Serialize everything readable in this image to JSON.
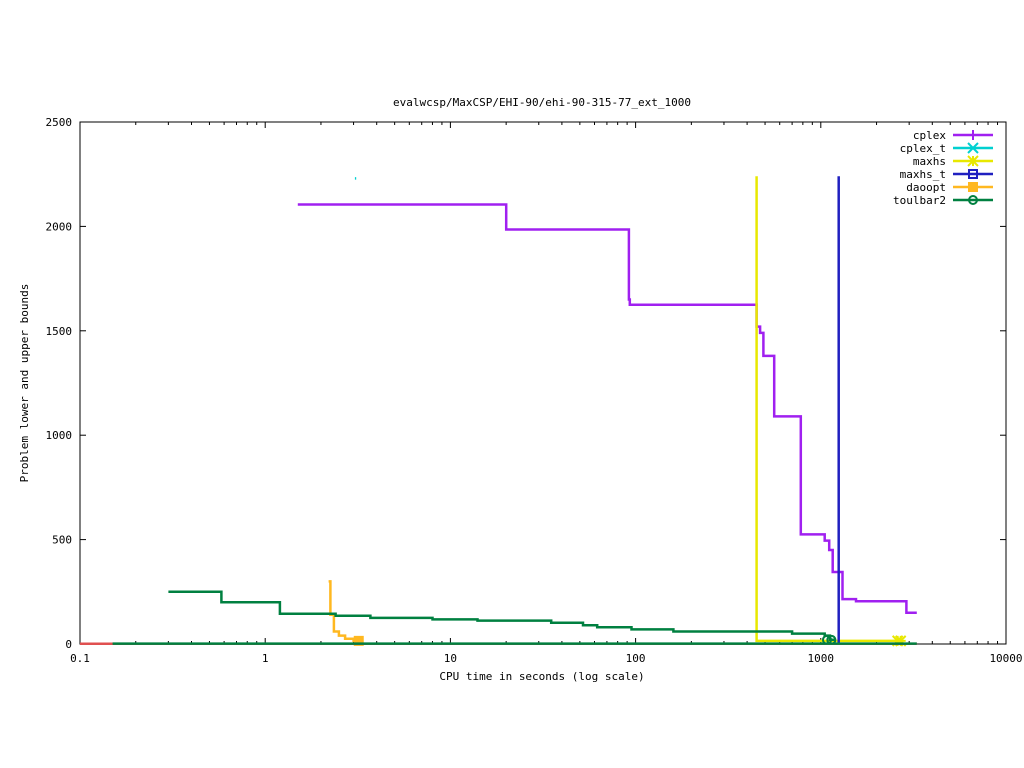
{
  "chart_data": {
    "type": "line",
    "title": "evalwcsp/MaxCSP/EHI-90/ehi-90-315-77_ext_1000",
    "xlabel": "CPU time in seconds (log scale)",
    "ylabel": "Problem lower and upper bounds",
    "xscale": "log",
    "xlim": [
      0.1,
      10000
    ],
    "ylim": [
      0,
      2500
    ],
    "xticks": [
      {
        "v": 0.1,
        "label": "0.1"
      },
      {
        "v": 1,
        "label": "1"
      },
      {
        "v": 10,
        "label": "10"
      },
      {
        "v": 100,
        "label": "100"
      },
      {
        "v": 1000,
        "label": "1000"
      },
      {
        "v": 10000,
        "label": "10000"
      }
    ],
    "yticks": [
      {
        "v": 0,
        "label": "0"
      },
      {
        "v": 500,
        "label": "500"
      },
      {
        "v": 1000,
        "label": "1000"
      },
      {
        "v": 1500,
        "label": "1500"
      },
      {
        "v": 2000,
        "label": "2000"
      },
      {
        "v": 2500,
        "label": "2500"
      }
    ],
    "grid": false,
    "legend_position": "top-right",
    "series": [
      {
        "name": "cplex",
        "color": "#a020f0",
        "marker": "plus",
        "points": [
          [
            1.5,
            2105
          ],
          [
            20,
            2105
          ],
          [
            20,
            1985
          ],
          [
            92,
            1985
          ],
          [
            92,
            1650
          ],
          [
            93,
            1650
          ],
          [
            93,
            1625
          ],
          [
            450,
            1625
          ],
          [
            450,
            1520
          ],
          [
            470,
            1520
          ],
          [
            470,
            1490
          ],
          [
            490,
            1490
          ],
          [
            490,
            1380
          ],
          [
            560,
            1380
          ],
          [
            560,
            1090
          ],
          [
            780,
            1090
          ],
          [
            780,
            525
          ],
          [
            1050,
            525
          ],
          [
            1050,
            495
          ],
          [
            1110,
            495
          ],
          [
            1110,
            450
          ],
          [
            1160,
            450
          ],
          [
            1160,
            345
          ],
          [
            1310,
            345
          ],
          [
            1310,
            215
          ],
          [
            1550,
            215
          ],
          [
            1550,
            205
          ],
          [
            2900,
            205
          ],
          [
            2900,
            150
          ],
          [
            3300,
            150
          ]
        ],
        "markers": []
      },
      {
        "name": "cplex_t",
        "color": "#00d0d0",
        "marker": "x",
        "points": [
          [
            3.05,
            2230
          ],
          [
            3.1,
            2230
          ]
        ],
        "markers": []
      },
      {
        "name": "maxhs",
        "color": "#e8e800",
        "marker": "star",
        "points": [
          [
            450,
            2240
          ],
          [
            450,
            15
          ],
          [
            2700,
            15
          ]
        ],
        "markers": [
          [
            2600,
            15
          ],
          [
            2700,
            15
          ]
        ]
      },
      {
        "name": "maxhs_t",
        "color": "#2020c0",
        "marker": "square",
        "points": [
          [
            1250,
            2240
          ],
          [
            1250,
            0
          ]
        ],
        "markers": []
      },
      {
        "name": "daoopt",
        "color": "#ffb820",
        "marker": "filled-square",
        "points": [
          [
            2.2,
            300
          ],
          [
            2.25,
            300
          ],
          [
            2.25,
            140
          ],
          [
            2.35,
            140
          ],
          [
            2.35,
            60
          ],
          [
            2.5,
            60
          ],
          [
            2.5,
            40
          ],
          [
            2.7,
            40
          ],
          [
            2.7,
            25
          ],
          [
            3.0,
            25
          ],
          [
            3.0,
            15
          ],
          [
            3.2,
            15
          ]
        ],
        "markers": [
          [
            3.2,
            15
          ]
        ]
      },
      {
        "name": "toulbar2",
        "color": "#008040",
        "marker": "circle",
        "points": [
          [
            0.3,
            250
          ],
          [
            0.58,
            250
          ],
          [
            0.58,
            200
          ],
          [
            1.2,
            200
          ],
          [
            1.2,
            145
          ],
          [
            2.4,
            145
          ],
          [
            2.4,
            135
          ],
          [
            3.7,
            135
          ],
          [
            3.7,
            125
          ],
          [
            8,
            125
          ],
          [
            8,
            118
          ],
          [
            14,
            118
          ],
          [
            14,
            112
          ],
          [
            35,
            112
          ],
          [
            35,
            102
          ],
          [
            52,
            102
          ],
          [
            52,
            90
          ],
          [
            62,
            90
          ],
          [
            62,
            80
          ],
          [
            95,
            80
          ],
          [
            95,
            70
          ],
          [
            160,
            70
          ],
          [
            160,
            60
          ],
          [
            700,
            60
          ],
          [
            700,
            50
          ],
          [
            1050,
            50
          ],
          [
            1050,
            40
          ],
          [
            1120,
            40
          ],
          [
            1120,
            20
          ],
          [
            1200,
            20
          ]
        ],
        "markers": [
          [
            1080,
            20
          ],
          [
            1140,
            20
          ]
        ]
      },
      {
        "name": "",
        "color": "#e05050",
        "marker": "none",
        "points": [
          [
            0.1,
            1
          ],
          [
            3300,
            1
          ]
        ],
        "markers": []
      },
      {
        "name": "",
        "color": "#008040",
        "marker": "none",
        "points": [
          [
            0.15,
            2
          ],
          [
            3300,
            2
          ]
        ],
        "markers": []
      }
    ]
  }
}
